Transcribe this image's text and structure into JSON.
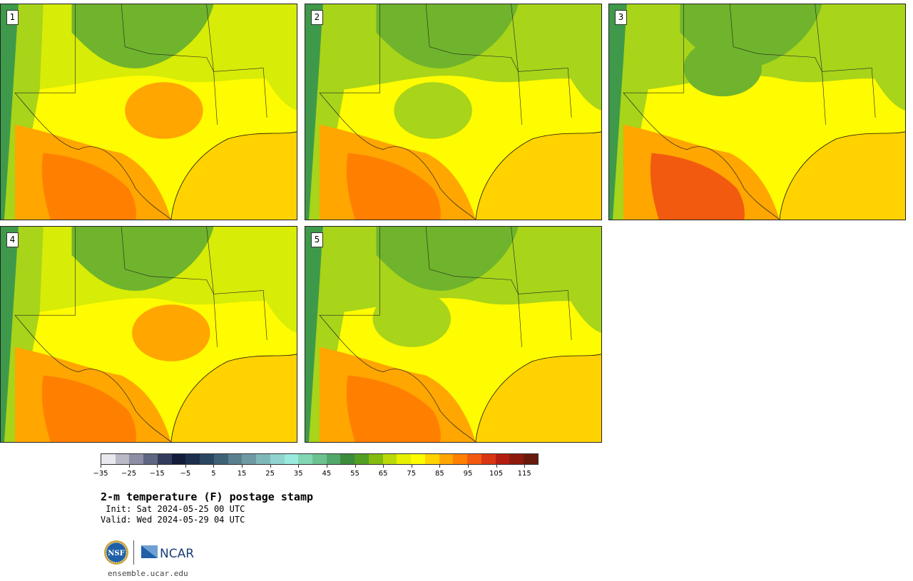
{
  "title": "2-m temperature (F) postage stamp",
  "init_text": " Init: Sat 2024-05-25 00 UTC",
  "valid_text": "Valid: Wed 2024-05-29 04 UTC",
  "members": [
    "1",
    "2",
    "3",
    "4",
    "5"
  ],
  "colorbar": {
    "tick_labels": [
      "−35",
      "−25",
      "−15",
      "−5",
      "5",
      "15",
      "25",
      "35",
      "45",
      "55",
      "65",
      "75",
      "85",
      "95",
      "105",
      "115"
    ],
    "colors": [
      "#e8e8ee",
      "#b9b9c8",
      "#8e8ea4",
      "#5f6582",
      "#343c5e",
      "#131d3a",
      "#1c2e4c",
      "#2b4662",
      "#3e6176",
      "#5a8090",
      "#6e9aa4",
      "#7fb8b8",
      "#8fd4cf",
      "#98ebdd",
      "#82d6b4",
      "#6cc191",
      "#52a86a",
      "#3b8c3c",
      "#539e24",
      "#84bb11",
      "#b9da06",
      "#e6f000",
      "#fffb00",
      "#ffd200",
      "#ffa600",
      "#ff8000",
      "#f25a10",
      "#d93614",
      "#b41e10",
      "#8e1a0e",
      "#6a1a0c"
    ]
  },
  "map_colors": {
    "deep_green": "#3e9a4a",
    "green": "#6fb42c",
    "yellow_green": "#a8d41a",
    "lime": "#d7ec06",
    "yellow": "#fffb00",
    "gold": "#ffd200",
    "orange": "#ffa600",
    "dark_orange": "#ff8000",
    "red_orange": "#f25a10"
  },
  "footer": {
    "org_logo_1": "NSF",
    "org_logo_2": "NCAR",
    "website": "ensemble.ucar.edu"
  }
}
